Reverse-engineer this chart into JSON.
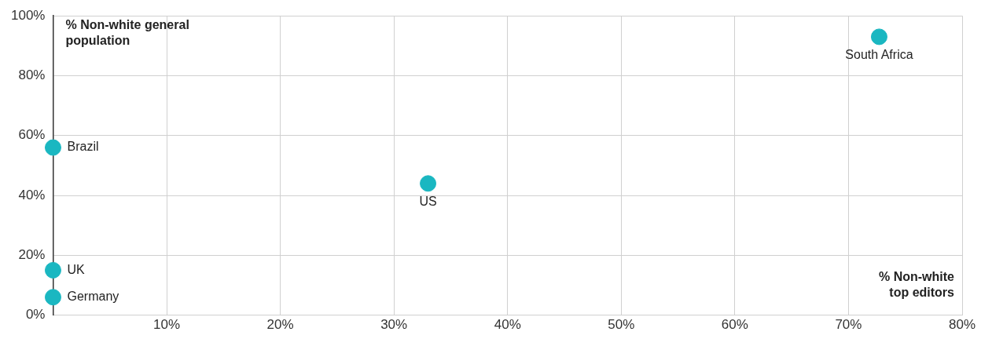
{
  "chart_data": {
    "type": "scatter",
    "xlabel": "% Non-white top editors",
    "ylabel": "% Non-white general population",
    "x": [
      0,
      0,
      0,
      33,
      72.7
    ],
    "values": [
      56,
      15,
      6,
      44,
      93
    ],
    "color": "#1ab7c1",
    "marker": "circle",
    "grid": true,
    "legend": false,
    "xlim": [
      0,
      80
    ],
    "xticks": [
      {
        "value": 0,
        "label": null
      },
      {
        "value": 10,
        "label": "10%"
      },
      {
        "value": 20,
        "label": "20%"
      },
      {
        "value": 30,
        "label": "30%"
      },
      {
        "value": 40,
        "label": "40%"
      },
      {
        "value": 50,
        "label": "50%"
      },
      {
        "value": 60,
        "label": "60%"
      },
      {
        "value": 70,
        "label": "70%"
      },
      {
        "value": 80,
        "label": "80%"
      }
    ],
    "ylim": [
      0,
      100
    ],
    "yticks": [
      {
        "value": 0,
        "label": "0%"
      },
      {
        "value": 20,
        "label": "20%"
      },
      {
        "value": 40,
        "label": "40%"
      },
      {
        "value": 60,
        "label": "60%"
      },
      {
        "value": 80,
        "label": "80%"
      },
      {
        "value": 100,
        "label": "100%"
      }
    ],
    "annotations": [
      {
        "text": "Brazil",
        "x": 0,
        "y": 56
      },
      {
        "text": "UK",
        "x": 0,
        "y": 15
      },
      {
        "text": "Germany",
        "x": 0,
        "y": 6
      },
      {
        "text": "US",
        "x": 33,
        "y": 44
      },
      {
        "text": "South Africa",
        "x": 72.7,
        "y": 93
      }
    ]
  }
}
